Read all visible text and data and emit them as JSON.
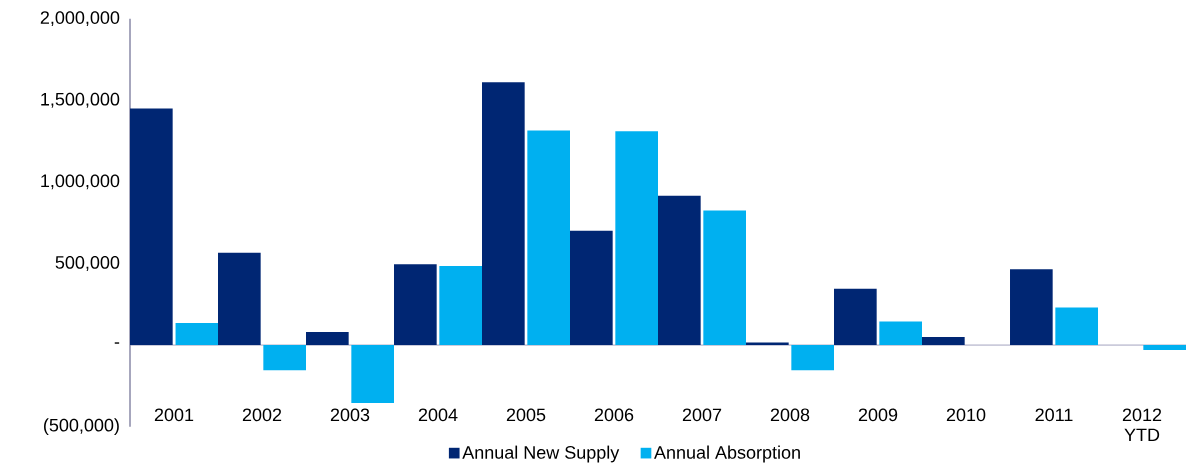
{
  "chart_data": {
    "type": "bar",
    "categories": [
      "2001",
      "2002",
      "2003",
      "2004",
      "2005",
      "2006",
      "2007",
      "2008",
      "2009",
      "2010",
      "2011",
      "2012 YTD"
    ],
    "series": [
      {
        "name": "Annual New Supply",
        "color": "#002673",
        "values": [
          1450000,
          565000,
          80000,
          495000,
          1610000,
          700000,
          915000,
          15000,
          345000,
          50000,
          465000,
          0
        ]
      },
      {
        "name": "Annual Absorption",
        "color": "#00b0f0",
        "values": [
          135000,
          -155000,
          -355000,
          485000,
          1315000,
          1310000,
          825000,
          -155000,
          145000,
          0,
          230000,
          -30000
        ]
      }
    ],
    "ylim": [
      -500000,
      2000000
    ],
    "yticks": [
      {
        "value": -500000,
        "label": "(500,000)"
      },
      {
        "value": 0,
        "label": "-"
      },
      {
        "value": 500000,
        "label": "500,000"
      },
      {
        "value": 1000000,
        "label": "1,000,000"
      },
      {
        "value": 1500000,
        "label": "1,500,000"
      },
      {
        "value": 2000000,
        "label": "2,000,000"
      }
    ],
    "ref_lines": [
      {
        "axis": "y",
        "value": 0,
        "color": "#8c8cae"
      }
    ],
    "legend": "bottom",
    "grid": false
  }
}
